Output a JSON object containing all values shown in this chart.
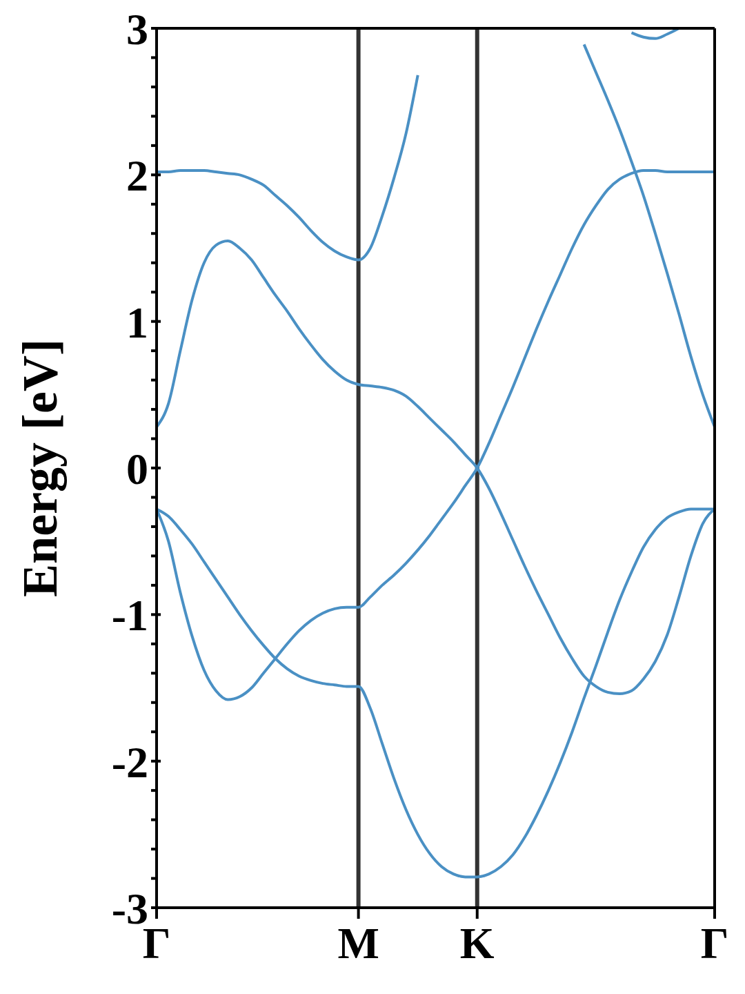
{
  "chart_data": {
    "type": "line",
    "ylabel": "Energy [eV]",
    "categories": [
      "Γ",
      null,
      null,
      null,
      null,
      null,
      null,
      null,
      null,
      null,
      null,
      null,
      null,
      null,
      null,
      null,
      null,
      "M",
      null,
      null,
      null,
      null,
      null,
      null,
      null,
      null,
      null,
      "K",
      null,
      null,
      null,
      null,
      null,
      null,
      null,
      null,
      null,
      null,
      null,
      null,
      null,
      null,
      null,
      null,
      null,
      null,
      null,
      "Γ"
    ],
    "ylim": [
      -3,
      3
    ],
    "yticks": [
      -3,
      {
        "value": -2.8,
        "label": null
      },
      {
        "value": -2.6,
        "label": null
      },
      {
        "value": -2.4,
        "label": null
      },
      {
        "value": -2.2,
        "label": null
      },
      -2,
      {
        "value": -1.8,
        "label": null
      },
      {
        "value": -1.6,
        "label": null
      },
      {
        "value": -1.4,
        "label": null
      },
      {
        "value": -1.2,
        "label": null
      },
      -1,
      {
        "value": -0.8,
        "label": null
      },
      {
        "value": -0.6,
        "label": null
      },
      {
        "value": -0.4,
        "label": null
      },
      {
        "value": -0.2,
        "label": null
      },
      0,
      {
        "value": 0.2,
        "label": null
      },
      {
        "value": 0.4,
        "label": null
      },
      {
        "value": 0.6,
        "label": null
      },
      {
        "value": 0.8,
        "label": null
      },
      1,
      {
        "value": 1.2,
        "label": null
      },
      {
        "value": 1.4,
        "label": null
      },
      {
        "value": 1.6,
        "label": null
      },
      {
        "value": 1.8,
        "label": null
      },
      2,
      {
        "value": 2.2,
        "label": null
      },
      {
        "value": 2.4,
        "label": null
      },
      {
        "value": 2.6,
        "label": null
      },
      {
        "value": 2.8,
        "label": null
      },
      3
    ],
    "marker": "none",
    "line_style": "solid",
    "ref_lines": [
      {
        "axis": "x",
        "value": "M",
        "color": "#333333"
      },
      {
        "axis": "x",
        "value": "K",
        "color": "#333333"
      }
    ],
    "series": [
      {
        "color": "#4a90c4",
        "values": [
          2.02,
          2.02,
          2.03,
          2.03,
          2.03,
          2.02,
          2.01,
          2.0,
          1.97,
          1.93,
          1.86,
          1.79,
          1.71,
          1.62,
          1.54,
          1.48,
          1.44,
          1.42,
          1.5,
          1.72,
          1.98,
          2.28,
          2.68,
          null,
          null,
          null,
          null,
          null,
          null,
          null,
          null,
          null,
          null,
          null,
          null,
          null,
          null,
          null,
          null,
          null,
          null,
          null,
          null,
          null,
          null,
          null,
          null,
          null
        ]
      },
      {
        "color": "#4a90c4",
        "values": [
          0.28,
          0.44,
          0.8,
          1.15,
          1.4,
          1.52,
          1.55,
          1.5,
          1.42,
          1.3,
          1.18,
          1.07,
          0.95,
          0.84,
          0.74,
          0.66,
          0.6,
          0.57,
          0.56,
          0.55,
          0.53,
          0.49,
          0.42,
          0.34,
          0.26,
          0.18,
          0.09,
          0,
          -0.14,
          -0.31,
          -0.49,
          -0.67,
          -0.84,
          -1.0,
          -1.16,
          -1.3,
          -1.42,
          -1.49,
          -1.53,
          -1.54,
          -1.52,
          -1.44,
          -1.32,
          -1.14,
          -0.88,
          -0.6,
          -0.38,
          -0.28
        ]
      },
      {
        "color": "#4a90c4",
        "values": [
          -0.28,
          -0.5,
          -0.85,
          -1.15,
          -1.38,
          -1.52,
          -1.58,
          -1.56,
          -1.5,
          -1.4,
          -1.3,
          -1.2,
          -1.11,
          -1.04,
          -0.99,
          -0.96,
          -0.95,
          -0.95,
          -0.88,
          -0.8,
          -0.73,
          -0.65,
          -0.56,
          -0.46,
          -0.35,
          -0.24,
          -0.12,
          0,
          0.17,
          0.36,
          0.55,
          0.75,
          0.95,
          1.14,
          1.32,
          1.5,
          1.66,
          1.79,
          1.9,
          1.97,
          2.01,
          2.03,
          2.03,
          2.02,
          2.02,
          2.02,
          2.02,
          2.02
        ]
      },
      {
        "color": "#4a90c4",
        "values": [
          -0.28,
          -0.33,
          -0.42,
          -0.52,
          -0.64,
          -0.76,
          -0.88,
          -1.0,
          -1.11,
          -1.21,
          -1.3,
          -1.37,
          -1.42,
          -1.45,
          -1.47,
          -1.48,
          -1.49,
          -1.49,
          -1.64,
          -1.88,
          -2.12,
          -2.33,
          -2.5,
          -2.63,
          -2.72,
          -2.77,
          -2.79,
          -2.79,
          -2.77,
          -2.72,
          -2.64,
          -2.52,
          -2.37,
          -2.2,
          -2.01,
          -1.8,
          -1.57,
          -1.35,
          -1.12,
          -0.9,
          -0.71,
          -0.54,
          -0.42,
          -0.34,
          -0.3,
          -0.28,
          -0.28,
          -0.28
        ]
      },
      {
        "color": "#4a90c4",
        "values": [
          null,
          null,
          null,
          null,
          null,
          null,
          null,
          null,
          null,
          null,
          null,
          null,
          null,
          null,
          null,
          null,
          null,
          null,
          null,
          null,
          null,
          null,
          null,
          null,
          null,
          null,
          null,
          null,
          null,
          null,
          null,
          null,
          null,
          null,
          null,
          null,
          2.89,
          2.7,
          2.51,
          2.31,
          2.09,
          1.86,
          1.6,
          1.33,
          1.05,
          0.76,
          0.5,
          0.28
        ]
      },
      {
        "color": "#4a90c4",
        "values": [
          null,
          null,
          null,
          null,
          null,
          null,
          null,
          null,
          null,
          null,
          null,
          null,
          null,
          null,
          null,
          null,
          null,
          null,
          null,
          null,
          null,
          null,
          null,
          null,
          null,
          null,
          null,
          null,
          null,
          null,
          null,
          null,
          null,
          null,
          null,
          null,
          null,
          null,
          null,
          null,
          2.97,
          2.94,
          2.93,
          2.96,
          3.0,
          null,
          null,
          null
        ]
      }
    ]
  }
}
